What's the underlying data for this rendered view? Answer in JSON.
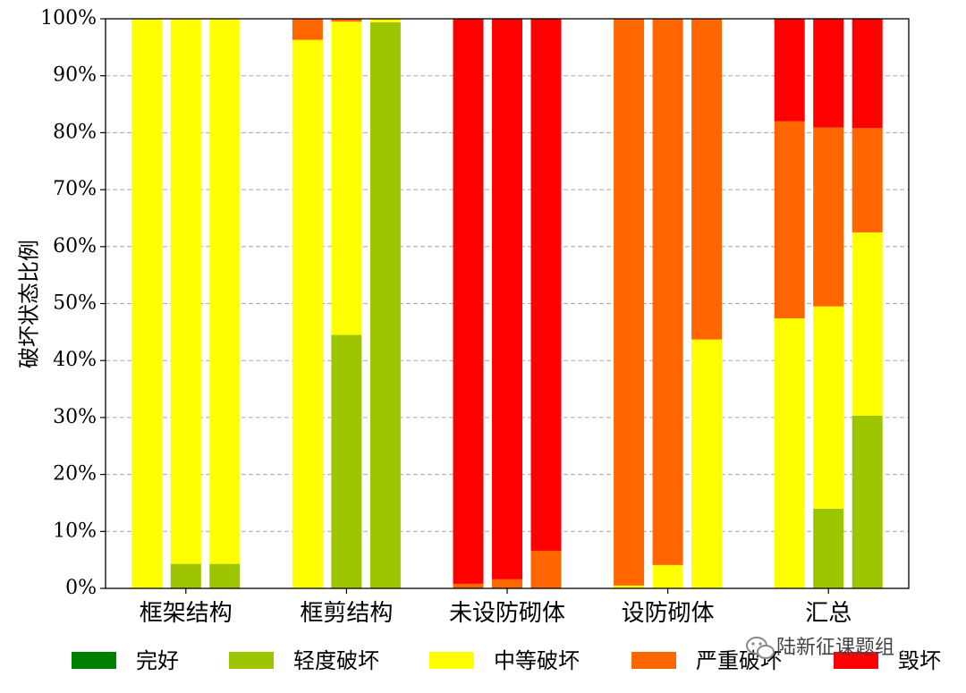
{
  "chart_data": {
    "type": "bar",
    "stacked": true,
    "ylabel": "破坏状态比例",
    "ylim": [
      0,
      100
    ],
    "y_ticks": [
      "0%",
      "10%",
      "20%",
      "30%",
      "40%",
      "50%",
      "60%",
      "70%",
      "80%",
      "90%",
      "100%"
    ],
    "grid": "horizontal dashed",
    "categories": [
      "框架结构",
      "框剪结构",
      "未设防砌体",
      "设防砌体",
      "汇总"
    ],
    "bars_per_category": 3,
    "series": [
      {
        "name": "完好",
        "color": "#008000",
        "values": [
          [
            0,
            0,
            0
          ],
          [
            0,
            0,
            0
          ],
          [
            0,
            0,
            0
          ],
          [
            0,
            0,
            0
          ],
          [
            0,
            0,
            0
          ]
        ]
      },
      {
        "name": "轻度破坏",
        "color": "#9DC600",
        "values": [
          [
            0,
            4.3,
            4.3
          ],
          [
            0,
            44.5,
            99.4
          ],
          [
            0,
            0,
            0
          ],
          [
            0,
            0,
            0
          ],
          [
            0,
            14,
            30.3
          ]
        ]
      },
      {
        "name": "中等破坏",
        "color": "#FFFF00",
        "values": [
          [
            100,
            95.7,
            95.7
          ],
          [
            96.3,
            55,
            0.6
          ],
          [
            0,
            0,
            0
          ],
          [
            0.5,
            4.1,
            43.7
          ],
          [
            47.4,
            35.5,
            32.2
          ]
        ]
      },
      {
        "name": "严重破坏",
        "color": "#FF6600",
        "values": [
          [
            0,
            0,
            0
          ],
          [
            3.7,
            0.5,
            0
          ],
          [
            0.8,
            1.6,
            6.6
          ],
          [
            99.5,
            95.9,
            56.3
          ],
          [
            34.6,
            31.4,
            18.3
          ]
        ]
      },
      {
        "name": "毁坏",
        "color": "#FF0000",
        "values": [
          [
            0,
            0,
            0
          ],
          [
            0,
            0,
            0
          ],
          [
            99.2,
            98.4,
            93.4
          ],
          [
            0,
            0,
            0
          ],
          [
            18,
            19.1,
            19.2
          ]
        ]
      }
    ],
    "legend_position": "bottom"
  },
  "watermark": {
    "icon": "wechat-icon",
    "text": "陆新征课题组"
  }
}
